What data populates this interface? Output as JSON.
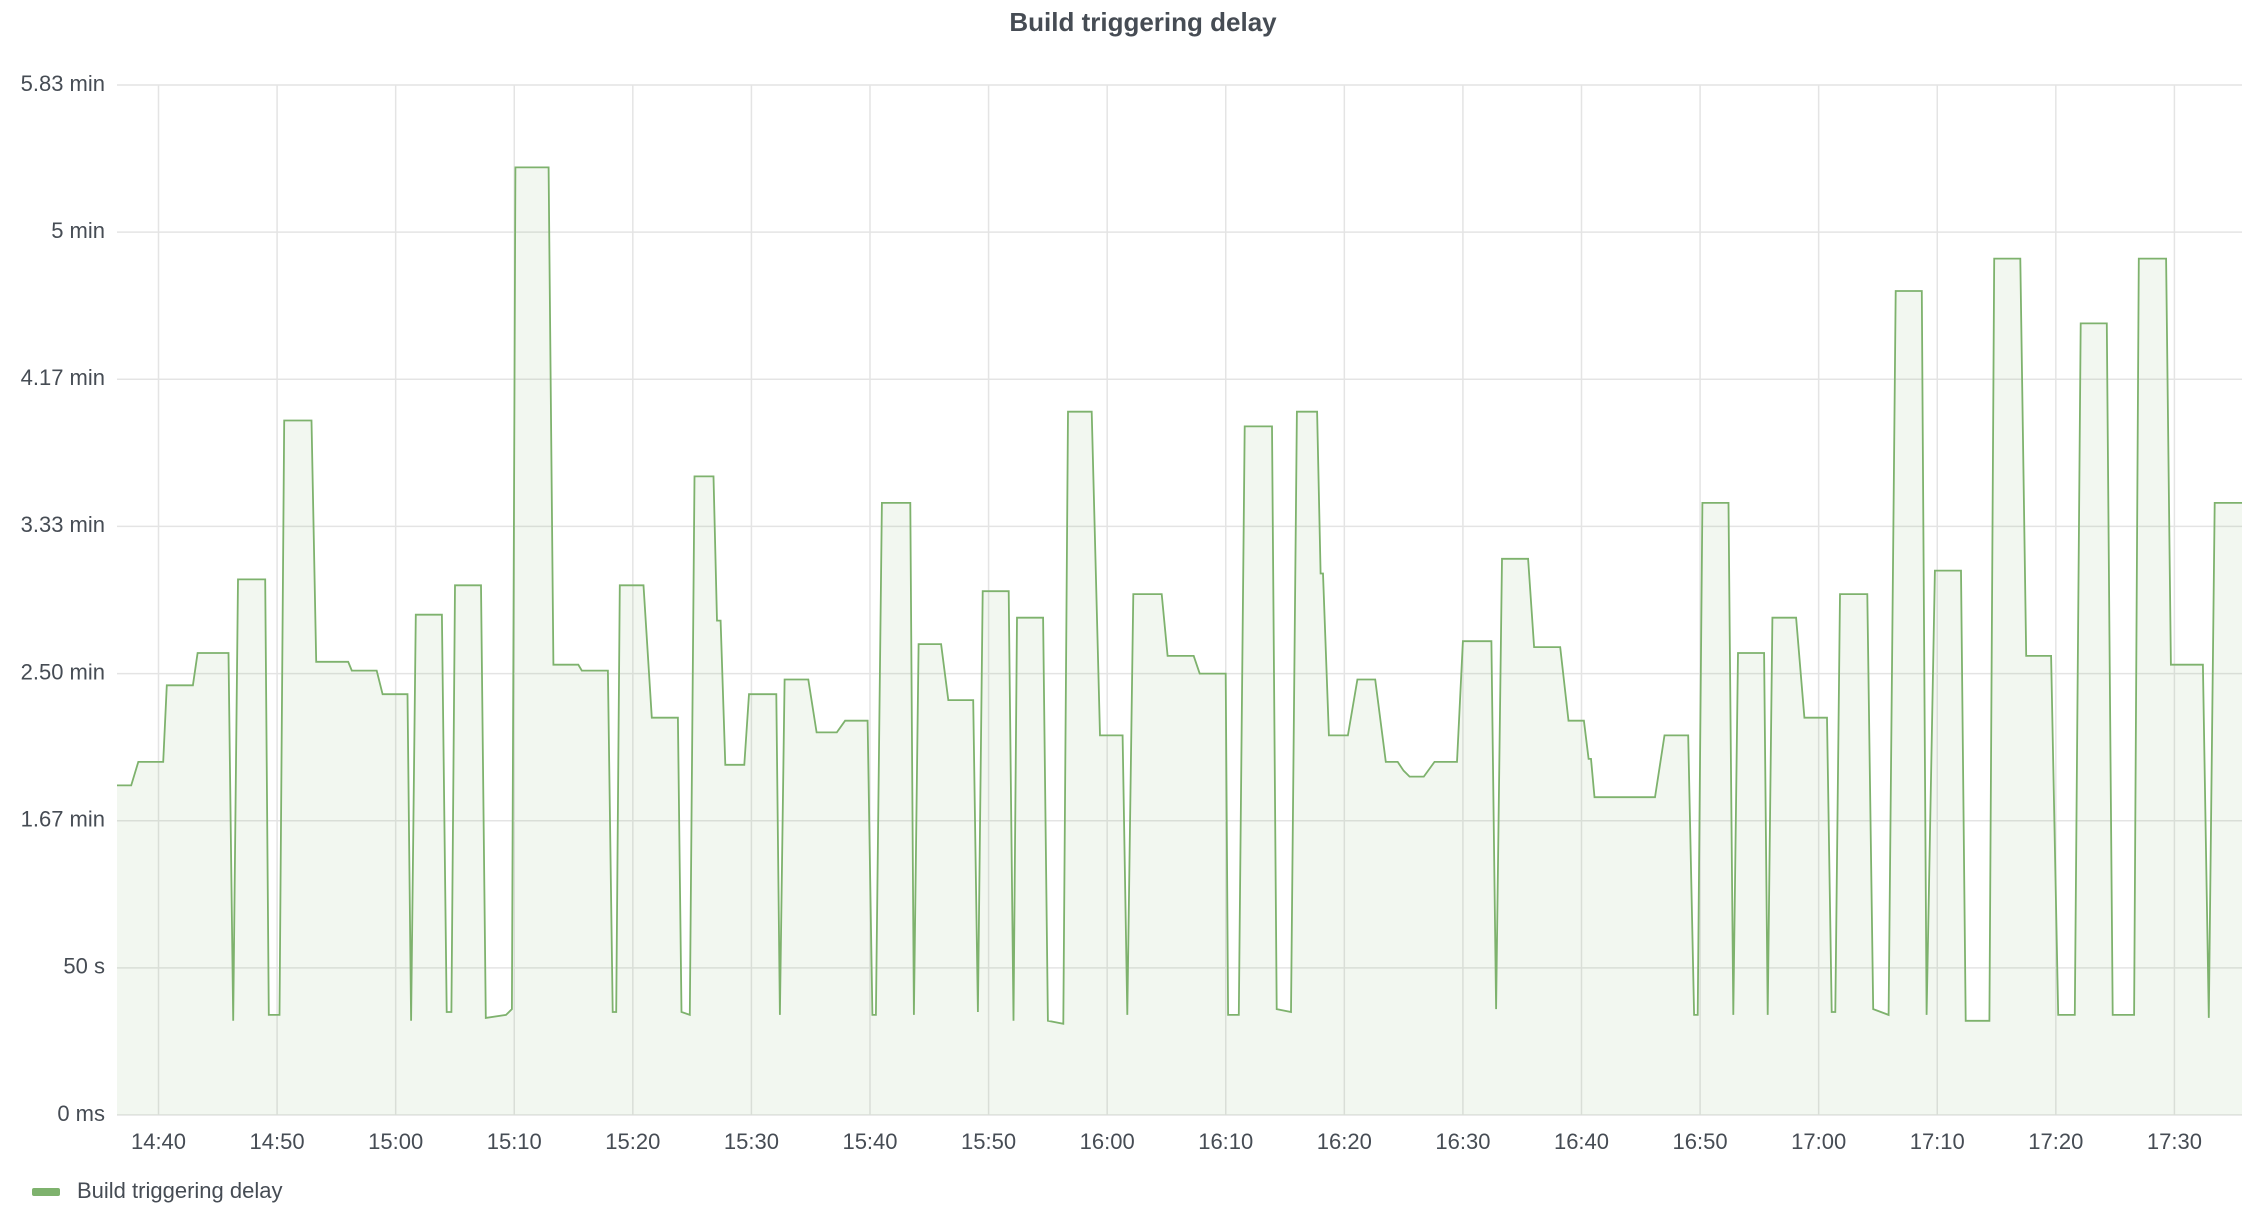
{
  "chart_data": {
    "type": "line",
    "title": "Build triggering delay",
    "xlim": [
      "14:36:30",
      "17:35:42"
    ],
    "xticks": [
      "14:40",
      "14:50",
      "15:00",
      "15:10",
      "15:20",
      "15:30",
      "15:40",
      "15:50",
      "16:00",
      "16:10",
      "16:20",
      "16:30",
      "16:40",
      "16:50",
      "17:00",
      "17:10",
      "17:20",
      "17:30"
    ],
    "ylim": [
      0,
      350
    ],
    "yticks": [
      {
        "value": 0,
        "label": "0 ms"
      },
      {
        "value": 50,
        "label": "50 s"
      },
      {
        "value": 100,
        "label": "1.67 min"
      },
      {
        "value": 150,
        "label": "2.50 min"
      },
      {
        "value": 200,
        "label": "3.33 min"
      },
      {
        "value": 250,
        "label": "4.17 min"
      },
      {
        "value": 300,
        "label": "5 min"
      },
      {
        "value": 350,
        "label": "5.83 min"
      }
    ],
    "grid": true,
    "legend": "bottom-left",
    "x": [
      "14:36:30",
      "14:37:42",
      "14:38:18",
      "14:40:24",
      "14:40:42",
      "14:42:54",
      "14:43:18",
      "14:45:54",
      "14:46:18",
      "14:46:42",
      "14:49:00",
      "14:49:18",
      "14:50:12",
      "14:50:36",
      "14:52:54",
      "14:53:18",
      "14:56:00",
      "14:56:18",
      "14:58:24",
      "14:58:54",
      "15:01:00",
      "15:01:18",
      "15:01:42",
      "15:03:54",
      "15:04:18",
      "15:04:42",
      "15:05:00",
      "15:07:12",
      "15:07:36",
      "15:09:18",
      "15:09:48",
      "15:10:06",
      "15:12:54",
      "15:13:18",
      "15:15:24",
      "15:15:42",
      "15:17:54",
      "15:18:18",
      "15:18:36",
      "15:18:54",
      "15:20:54",
      "15:21:36",
      "15:23:48",
      "15:24:06",
      "15:24:48",
      "15:25:12",
      "15:26:48",
      "15:27:06",
      "15:27:24",
      "15:27:48",
      "15:29:24",
      "15:29:48",
      "15:32:06",
      "15:32:24",
      "15:32:48",
      "15:34:48",
      "15:35:30",
      "15:37:12",
      "15:37:54",
      "15:39:48",
      "15:40:12",
      "15:40:30",
      "15:41:00",
      "15:43:24",
      "15:43:42",
      "15:44:06",
      "15:46:00",
      "15:46:36",
      "15:48:42",
      "15:49:06",
      "15:49:30",
      "15:51:42",
      "15:52:06",
      "15:52:24",
      "15:54:36",
      "15:55:00",
      "15:56:18",
      "15:56:42",
      "15:58:42",
      "15:59:24",
      "16:01:18",
      "16:01:42",
      "16:02:12",
      "16:04:36",
      "16:05:06",
      "16:07:18",
      "16:07:48",
      "16:10:00",
      "16:10:12",
      "16:11:06",
      "16:11:36",
      "16:13:54",
      "16:14:18",
      "16:15:30",
      "16:16:00",
      "16:17:42",
      "16:18:00",
      "16:18:12",
      "16:18:42",
      "16:20:18",
      "16:21:06",
      "16:22:36",
      "16:23:30",
      "16:24:30",
      "16:25:00",
      "16:25:30",
      "16:26:42",
      "16:27:36",
      "16:29:30",
      "16:30:00",
      "16:32:24",
      "16:32:48",
      "16:33:18",
      "16:35:30",
      "16:36:00",
      "16:38:12",
      "16:38:54",
      "16:40:12",
      "16:40:36",
      "16:40:48",
      "16:41:06",
      "16:46:12",
      "16:47:00",
      "16:49:00",
      "16:49:30",
      "16:49:48",
      "16:50:12",
      "16:52:24",
      "16:52:48",
      "16:53:12",
      "16:55:24",
      "16:55:42",
      "16:56:06",
      "16:58:06",
      "16:58:48",
      "17:00:42",
      "17:01:06",
      "17:01:24",
      "17:01:48",
      "17:04:06",
      "17:04:36",
      "17:05:54",
      "17:06:30",
      "17:08:42",
      "17:09:06",
      "17:09:48",
      "17:12:00",
      "17:12:24",
      "17:14:24",
      "17:14:48",
      "17:17:00",
      "17:17:30",
      "17:19:36",
      "17:20:12",
      "17:21:36",
      "17:22:06",
      "17:24:18",
      "17:24:48",
      "17:26:36",
      "17:27:00",
      "17:29:18",
      "17:29:42",
      "17:32:24",
      "17:32:54",
      "17:33:24",
      "17:35:42"
    ],
    "series": [
      {
        "name": "Build triggering delay",
        "color": "#7eb26d",
        "values": [
          112,
          112,
          120,
          120,
          146,
          146,
          157,
          157,
          32,
          182,
          182,
          34,
          34,
          236,
          236,
          154,
          154,
          151,
          151,
          143,
          143,
          32,
          170,
          170,
          35,
          35,
          180,
          180,
          33,
          34,
          36,
          322,
          322,
          153,
          153,
          151,
          151,
          35,
          35,
          180,
          180,
          135,
          135,
          35,
          34,
          217,
          217,
          168,
          168,
          119,
          119,
          143,
          143,
          34,
          148,
          148,
          130,
          130,
          134,
          134,
          34,
          34,
          208,
          208,
          34,
          160,
          160,
          141,
          141,
          35,
          178,
          178,
          32,
          169,
          169,
          32,
          31,
          239,
          239,
          129,
          129,
          34,
          177,
          177,
          156,
          156,
          150,
          150,
          34,
          34,
          234,
          234,
          36,
          35,
          239,
          239,
          184,
          184,
          129,
          129,
          148,
          148,
          120,
          120,
          117,
          115,
          115,
          120,
          120,
          161,
          161,
          36,
          189,
          189,
          159,
          159,
          134,
          134,
          121,
          121,
          108,
          108,
          129,
          129,
          34,
          34,
          208,
          208,
          34,
          157,
          157,
          34,
          169,
          169,
          135,
          135,
          35,
          35,
          177,
          177,
          36,
          34,
          280,
          280,
          34,
          185,
          185,
          32,
          32,
          291,
          291,
          156,
          156,
          34,
          34,
          269,
          269,
          34,
          34,
          291,
          291,
          153,
          153,
          33,
          208,
          208
        ]
      }
    ]
  }
}
